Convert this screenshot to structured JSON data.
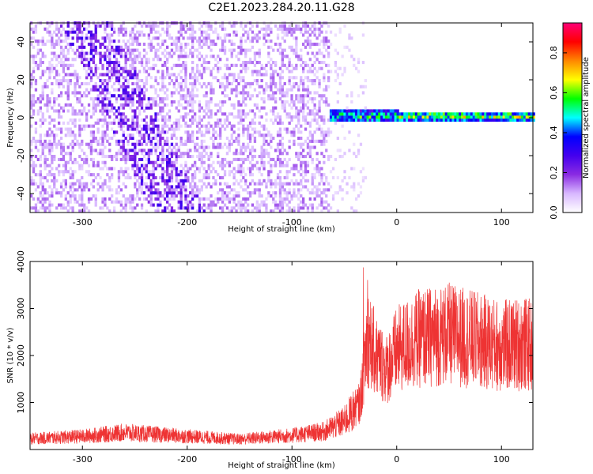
{
  "title": "C2E1.2023.284.20.11.G28",
  "colors": {
    "snr_line": "#ee3333",
    "cmap": [
      "#ffffff",
      "#d8b8ff",
      "#8a2be2",
      "#4400ee",
      "#0000ff",
      "#00ffff",
      "#00ff00",
      "#ffff00",
      "#ff8800",
      "#ff0000",
      "#ff0077"
    ]
  },
  "chart_data": [
    {
      "type": "heatmap",
      "xlabel": "Height of straight line (km)",
      "ylabel": "Frequency (Hz)",
      "xlim": [
        -350,
        130
      ],
      "ylim": [
        -50,
        50
      ],
      "xticks": [
        -300,
        -200,
        -100,
        0,
        100
      ],
      "yticks": [
        -40,
        -20,
        0,
        20,
        40
      ],
      "colorbar": {
        "label": "Normalized spectral amplitude",
        "range": [
          0,
          0.95
        ],
        "ticks": [
          0.0,
          0.2,
          0.4,
          0.6,
          0.8
        ]
      },
      "regions": [
        {
          "description": "broadband noise",
          "x_range": [
            -350,
            -65
          ],
          "y_range": [
            -50,
            50
          ],
          "amplitude": 0.15
        },
        {
          "description": "sparse noise",
          "x_range": [
            -65,
            -30
          ],
          "y_range": [
            -50,
            50
          ],
          "amplitude": 0.05
        },
        {
          "description": "signal near 0 Hz",
          "x_range": [
            -65,
            130
          ],
          "y_center": 0,
          "amplitude": 0.95
        }
      ]
    },
    {
      "type": "line",
      "xlabel": "Height of straight line (km)",
      "ylabel": "SNR (10 * v/v)",
      "xlim": [
        -350,
        130
      ],
      "ylim": [
        0,
        4000
      ],
      "xticks": [
        -300,
        -200,
        -100,
        0,
        100
      ],
      "yticks": [
        1000,
        2000,
        3000,
        4000
      ],
      "series": [
        {
          "x": [
            -350,
            -300,
            -260,
            -200,
            -150,
            -100,
            -70,
            -50,
            -35,
            -28,
            -20,
            -10,
            0,
            20,
            50,
            80,
            100,
            120,
            130
          ],
          "y": [
            230,
            280,
            360,
            280,
            220,
            300,
            380,
            600,
            1000,
            2400,
            2000,
            1700,
            2100,
            2350,
            2450,
            2300,
            2200,
            2250,
            2200
          ]
        }
      ]
    }
  ]
}
